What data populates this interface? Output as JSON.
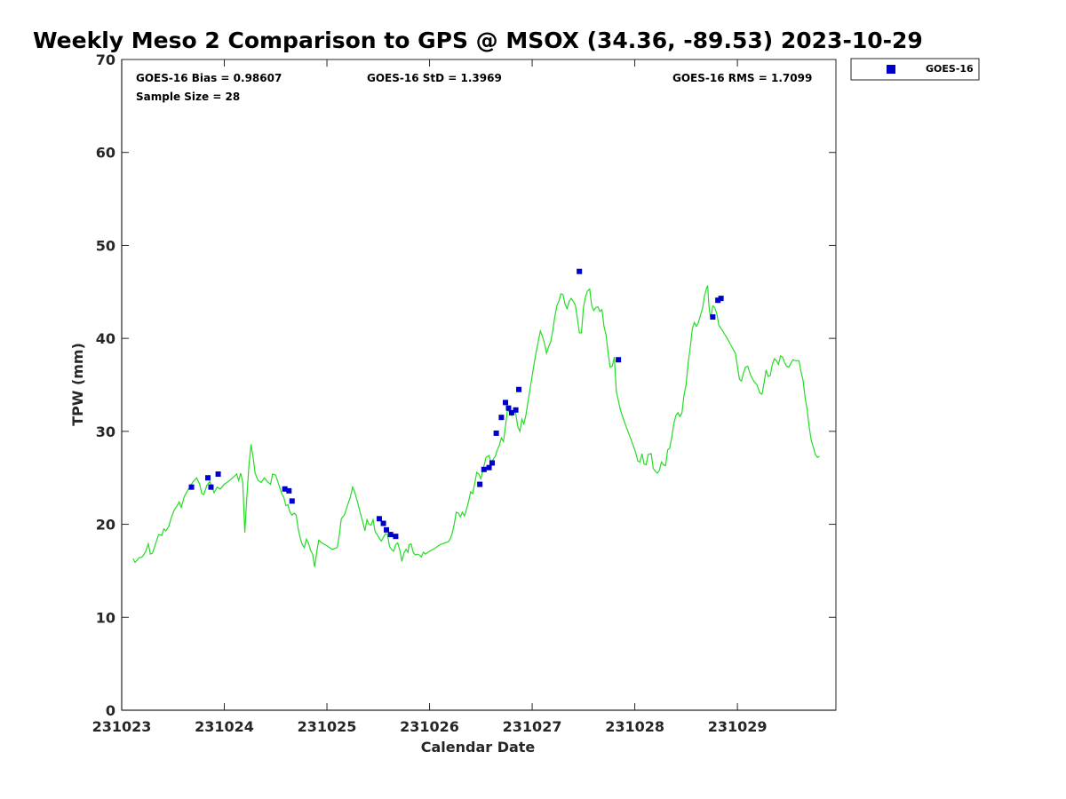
{
  "chart_data": {
    "type": "line",
    "title": "Weekly Meso 2 Comparison to GPS @ MSOX (34.36, -89.53) 2023-10-29",
    "xlabel": "Calendar Date",
    "ylabel": "TPW (mm)",
    "x_tick_labels": [
      "231023",
      "231024",
      "231025",
      "231026",
      "231027",
      "231028",
      "231029"
    ],
    "xlim": [
      0,
      6.96
    ],
    "ylim": [
      0,
      70
    ],
    "y_ticks": [
      0,
      10,
      20,
      30,
      40,
      50,
      60,
      70
    ],
    "y_tick_labels": [
      "0",
      "10",
      "20",
      "30",
      "40",
      "50",
      "60",
      "70"
    ],
    "stats": {
      "bias": "GOES-16 Bias = 0.98607",
      "std": "GOES-16 StD = 1.3969",
      "rms": "GOES-16 RMS = 1.7099",
      "sample": "Sample Size = 28"
    },
    "legend": {
      "position": "top-right",
      "label": "GOES-16",
      "color": "#0000cc"
    },
    "gps_line_color": "#22dd22",
    "gps_series": [
      [
        0.11,
        16.3
      ],
      [
        0.13,
        15.9
      ],
      [
        0.17,
        16.4
      ],
      [
        0.2,
        16.5
      ],
      [
        0.23,
        17.0
      ],
      [
        0.26,
        17.9
      ],
      [
        0.28,
        16.8
      ],
      [
        0.3,
        16.9
      ],
      [
        0.33,
        17.9
      ],
      [
        0.36,
        18.9
      ],
      [
        0.39,
        18.8
      ],
      [
        0.41,
        19.5
      ],
      [
        0.43,
        19.3
      ],
      [
        0.46,
        19.8
      ],
      [
        0.48,
        20.6
      ],
      [
        0.51,
        21.5
      ],
      [
        0.54,
        22.0
      ],
      [
        0.56,
        22.4
      ],
      [
        0.58,
        21.8
      ],
      [
        0.61,
        23.0
      ],
      [
        0.65,
        23.8
      ],
      [
        0.69,
        24.5
      ],
      [
        0.73,
        25.0
      ],
      [
        0.76,
        24.3
      ],
      [
        0.78,
        23.3
      ],
      [
        0.8,
        23.2
      ],
      [
        0.83,
        24.2
      ],
      [
        0.86,
        24.6
      ],
      [
        0.88,
        24.0
      ],
      [
        0.9,
        23.4
      ],
      [
        0.93,
        24.0
      ],
      [
        0.96,
        23.8
      ],
      [
        1.0,
        24.3
      ],
      [
        1.05,
        24.7
      ],
      [
        1.1,
        25.2
      ],
      [
        1.12,
        25.4
      ],
      [
        1.14,
        24.7
      ],
      [
        1.16,
        25.5
      ],
      [
        1.18,
        24.5
      ],
      [
        1.2,
        19.1
      ],
      [
        1.22,
        23.0
      ],
      [
        1.24,
        26.3
      ],
      [
        1.26,
        28.6
      ],
      [
        1.28,
        27.2
      ],
      [
        1.3,
        25.5
      ],
      [
        1.33,
        24.7
      ],
      [
        1.36,
        24.5
      ],
      [
        1.39,
        25.0
      ],
      [
        1.42,
        24.6
      ],
      [
        1.45,
        24.3
      ],
      [
        1.47,
        25.4
      ],
      [
        1.5,
        25.3
      ],
      [
        1.53,
        24.3
      ],
      [
        1.56,
        23.3
      ],
      [
        1.58,
        22.9
      ],
      [
        1.6,
        22.0
      ],
      [
        1.62,
        22.1
      ],
      [
        1.64,
        21.3
      ],
      [
        1.66,
        21.0
      ],
      [
        1.68,
        21.2
      ],
      [
        1.7,
        21.0
      ],
      [
        1.72,
        19.5
      ],
      [
        1.74,
        18.5
      ],
      [
        1.76,
        17.8
      ],
      [
        1.78,
        17.5
      ],
      [
        1.8,
        18.4
      ],
      [
        1.82,
        18.0
      ],
      [
        1.84,
        17.2
      ],
      [
        1.86,
        16.8
      ],
      [
        1.88,
        15.4
      ],
      [
        1.9,
        17.0
      ],
      [
        1.92,
        18.3
      ],
      [
        1.95,
        18.0
      ],
      [
        2.0,
        17.7
      ],
      [
        2.05,
        17.3
      ],
      [
        2.1,
        17.5
      ],
      [
        2.12,
        18.8
      ],
      [
        2.14,
        20.6
      ],
      [
        2.17,
        21.0
      ],
      [
        2.2,
        22.0
      ],
      [
        2.23,
        23.0
      ],
      [
        2.25,
        24.0
      ],
      [
        2.27,
        23.5
      ],
      [
        2.3,
        22.3
      ],
      [
        2.33,
        21.0
      ],
      [
        2.35,
        20.2
      ],
      [
        2.37,
        19.3
      ],
      [
        2.39,
        20.5
      ],
      [
        2.41,
        20.0
      ],
      [
        2.43,
        19.9
      ],
      [
        2.45,
        20.5
      ],
      [
        2.47,
        19.2
      ],
      [
        2.49,
        18.9
      ],
      [
        2.51,
        18.5
      ],
      [
        2.53,
        18.2
      ],
      [
        2.55,
        18.6
      ],
      [
        2.57,
        19.0
      ],
      [
        2.59,
        18.9
      ],
      [
        2.61,
        17.6
      ],
      [
        2.63,
        17.3
      ],
      [
        2.65,
        17.1
      ],
      [
        2.67,
        17.8
      ],
      [
        2.69,
        18.0
      ],
      [
        2.71,
        17.2
      ],
      [
        2.73,
        16.0
      ],
      [
        2.75,
        16.9
      ],
      [
        2.77,
        17.3
      ],
      [
        2.79,
        17.0
      ],
      [
        2.8,
        17.8
      ],
      [
        2.82,
        17.9
      ],
      [
        2.84,
        17.0
      ],
      [
        2.86,
        16.7
      ],
      [
        2.88,
        16.8
      ],
      [
        2.9,
        16.7
      ],
      [
        2.92,
        16.5
      ],
      [
        2.94,
        17.0
      ],
      [
        2.96,
        16.8
      ],
      [
        3.0,
        17.1
      ],
      [
        3.05,
        17.4
      ],
      [
        3.1,
        17.8
      ],
      [
        3.15,
        18.0
      ],
      [
        3.18,
        18.1
      ],
      [
        3.2,
        18.4
      ],
      [
        3.22,
        19.0
      ],
      [
        3.24,
        20.0
      ],
      [
        3.26,
        21.3
      ],
      [
        3.28,
        21.2
      ],
      [
        3.3,
        20.8
      ],
      [
        3.32,
        21.3
      ],
      [
        3.34,
        20.9
      ],
      [
        3.36,
        21.6
      ],
      [
        3.38,
        22.4
      ],
      [
        3.4,
        23.5
      ],
      [
        3.42,
        23.3
      ],
      [
        3.44,
        24.4
      ],
      [
        3.46,
        25.6
      ],
      [
        3.48,
        25.4
      ],
      [
        3.5,
        24.9
      ],
      [
        3.52,
        25.8
      ],
      [
        3.55,
        27.2
      ],
      [
        3.58,
        27.4
      ],
      [
        3.6,
        26.6
      ],
      [
        3.62,
        27.0
      ],
      [
        3.64,
        27.3
      ],
      [
        3.66,
        28.0
      ],
      [
        3.68,
        28.5
      ],
      [
        3.7,
        29.3
      ],
      [
        3.72,
        28.9
      ],
      [
        3.74,
        30.5
      ],
      [
        3.76,
        32.4
      ],
      [
        3.78,
        32.0
      ],
      [
        3.8,
        31.7
      ],
      [
        3.82,
        32.4
      ],
      [
        3.84,
        31.9
      ],
      [
        3.86,
        30.5
      ],
      [
        3.88,
        30.0
      ],
      [
        3.9,
        31.3
      ],
      [
        3.92,
        30.8
      ],
      [
        3.94,
        31.8
      ],
      [
        3.96,
        33.2
      ],
      [
        4.0,
        36.0
      ],
      [
        4.03,
        38.0
      ],
      [
        4.06,
        39.7
      ],
      [
        4.08,
        40.8
      ],
      [
        4.1,
        40.2
      ],
      [
        4.12,
        39.5
      ],
      [
        4.14,
        38.4
      ],
      [
        4.16,
        39.1
      ],
      [
        4.18,
        39.6
      ],
      [
        4.2,
        40.8
      ],
      [
        4.22,
        42.3
      ],
      [
        4.24,
        43.5
      ],
      [
        4.26,
        44.0
      ],
      [
        4.28,
        44.8
      ],
      [
        4.3,
        44.7
      ],
      [
        4.32,
        43.7
      ],
      [
        4.34,
        43.2
      ],
      [
        4.36,
        44.0
      ],
      [
        4.38,
        44.3
      ],
      [
        4.4,
        44.0
      ],
      [
        4.42,
        43.6
      ],
      [
        4.44,
        42.2
      ],
      [
        4.46,
        40.6
      ],
      [
        4.48,
        40.6
      ],
      [
        4.5,
        43.3
      ],
      [
        4.52,
        44.5
      ],
      [
        4.54,
        45.1
      ],
      [
        4.56,
        45.3
      ],
      [
        4.58,
        43.5
      ],
      [
        4.6,
        43.0
      ],
      [
        4.62,
        43.3
      ],
      [
        4.64,
        43.4
      ],
      [
        4.66,
        42.9
      ],
      [
        4.68,
        43.1
      ],
      [
        4.7,
        41.3
      ],
      [
        4.72,
        40.4
      ],
      [
        4.74,
        38.4
      ],
      [
        4.76,
        36.9
      ],
      [
        4.78,
        37.0
      ],
      [
        4.8,
        38.0
      ],
      [
        4.82,
        34.3
      ],
      [
        4.84,
        33.3
      ],
      [
        4.86,
        32.3
      ],
      [
        4.9,
        31.0
      ],
      [
        4.95,
        29.5
      ],
      [
        5.0,
        28.0
      ],
      [
        5.03,
        26.8
      ],
      [
        5.05,
        26.7
      ],
      [
        5.07,
        27.6
      ],
      [
        5.09,
        26.5
      ],
      [
        5.11,
        26.4
      ],
      [
        5.13,
        27.5
      ],
      [
        5.16,
        27.6
      ],
      [
        5.18,
        26.0
      ],
      [
        5.2,
        25.7
      ],
      [
        5.22,
        25.5
      ],
      [
        5.24,
        25.8
      ],
      [
        5.26,
        26.7
      ],
      [
        5.28,
        26.4
      ],
      [
        5.3,
        26.3
      ],
      [
        5.32,
        28.0
      ],
      [
        5.34,
        28.2
      ],
      [
        5.36,
        29.4
      ],
      [
        5.38,
        30.8
      ],
      [
        5.4,
        31.7
      ],
      [
        5.42,
        32.0
      ],
      [
        5.44,
        31.6
      ],
      [
        5.46,
        32.0
      ],
      [
        5.48,
        33.9
      ],
      [
        5.5,
        35.0
      ],
      [
        5.52,
        37.4
      ],
      [
        5.54,
        39.0
      ],
      [
        5.56,
        41.0
      ],
      [
        5.58,
        41.7
      ],
      [
        5.6,
        41.3
      ],
      [
        5.62,
        41.7
      ],
      [
        5.64,
        42.5
      ],
      [
        5.66,
        43.2
      ],
      [
        5.68,
        44.6
      ],
      [
        5.7,
        45.4
      ],
      [
        5.71,
        45.7
      ],
      [
        5.72,
        43.8
      ],
      [
        5.73,
        42.8
      ],
      [
        5.74,
        42.2
      ],
      [
        5.76,
        43.5
      ],
      [
        5.78,
        43.3
      ],
      [
        5.8,
        42.6
      ],
      [
        5.82,
        41.4
      ],
      [
        5.85,
        40.9
      ],
      [
        5.9,
        40.0
      ],
      [
        5.95,
        39.0
      ],
      [
        5.98,
        38.4
      ],
      [
        6.0,
        37.0
      ],
      [
        6.02,
        35.6
      ],
      [
        6.04,
        35.4
      ],
      [
        6.06,
        36.3
      ],
      [
        6.08,
        36.9
      ],
      [
        6.1,
        37.0
      ],
      [
        6.13,
        36.0
      ],
      [
        6.16,
        35.4
      ],
      [
        6.19,
        35.0
      ],
      [
        6.22,
        34.1
      ],
      [
        6.24,
        34.0
      ],
      [
        6.26,
        35.2
      ],
      [
        6.28,
        36.6
      ],
      [
        6.3,
        35.9
      ],
      [
        6.32,
        36.0
      ],
      [
        6.34,
        37.2
      ],
      [
        6.36,
        37.8
      ],
      [
        6.38,
        37.6
      ],
      [
        6.4,
        37.2
      ],
      [
        6.42,
        38.1
      ],
      [
        6.44,
        38.0
      ],
      [
        6.46,
        37.4
      ],
      [
        6.48,
        37.0
      ],
      [
        6.5,
        36.9
      ],
      [
        6.52,
        37.3
      ],
      [
        6.54,
        37.7
      ],
      [
        6.57,
        37.6
      ],
      [
        6.6,
        37.6
      ],
      [
        6.62,
        36.4
      ],
      [
        6.64,
        35.5
      ],
      [
        6.66,
        33.6
      ],
      [
        6.68,
        32.3
      ],
      [
        6.7,
        30.4
      ],
      [
        6.72,
        29.0
      ],
      [
        6.74,
        28.3
      ],
      [
        6.76,
        27.5
      ],
      [
        6.78,
        27.2
      ],
      [
        6.8,
        27.3
      ]
    ],
    "goes_points": [
      [
        0.68,
        24.0
      ],
      [
        0.84,
        25.0
      ],
      [
        0.87,
        24.0
      ],
      [
        0.94,
        25.4
      ],
      [
        1.59,
        23.8
      ],
      [
        1.63,
        23.6
      ],
      [
        1.66,
        22.5
      ],
      [
        2.51,
        20.6
      ],
      [
        2.55,
        20.1
      ],
      [
        2.58,
        19.4
      ],
      [
        2.62,
        18.9
      ],
      [
        2.67,
        18.7
      ],
      [
        3.49,
        24.3
      ],
      [
        3.53,
        25.9
      ],
      [
        3.58,
        26.1
      ],
      [
        3.61,
        26.6
      ],
      [
        3.65,
        29.8
      ],
      [
        3.7,
        31.5
      ],
      [
        3.74,
        33.1
      ],
      [
        3.77,
        32.5
      ],
      [
        3.8,
        32.0
      ],
      [
        3.84,
        32.3
      ],
      [
        3.87,
        34.5
      ],
      [
        4.46,
        47.2
      ],
      [
        4.84,
        37.7
      ],
      [
        5.76,
        42.3
      ],
      [
        5.81,
        44.1
      ],
      [
        5.84,
        44.3
      ]
    ]
  }
}
